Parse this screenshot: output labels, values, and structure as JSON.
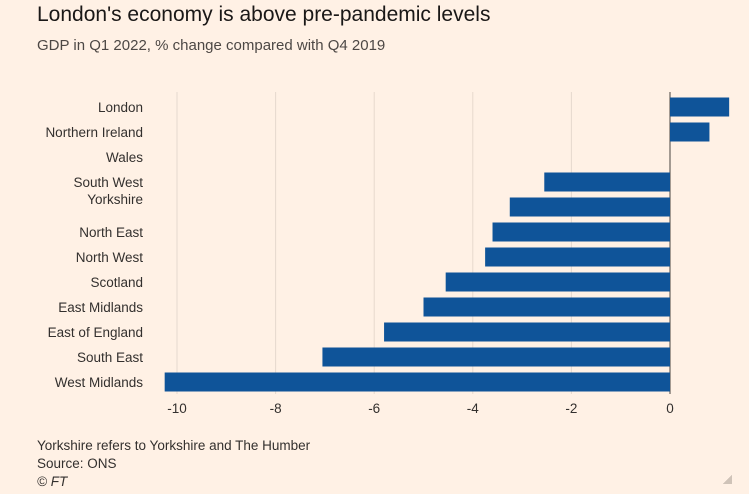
{
  "title": "London's economy is above pre-pandemic levels",
  "subtitle": "GDP in Q1 2022, % change compared with Q4 2019",
  "footer": {
    "note": "Yorkshire refers to Yorkshire and The Humber",
    "source": "Source: ONS",
    "copyright": "© FT"
  },
  "colors": {
    "background": "#fff1e5",
    "bar": "#0f5499",
    "grid": "#e6d9ce",
    "zero_line": "#66605c"
  },
  "chart_data": {
    "type": "bar",
    "orientation": "horizontal",
    "categories": [
      "London",
      "Northern Ireland",
      "Wales",
      "South West",
      "Yorkshire",
      "North East",
      "North West",
      "Scotland",
      "East Midlands",
      "East of England",
      "South East",
      "West Midlands"
    ],
    "values": [
      1.2,
      0.8,
      null,
      -2.55,
      -3.25,
      -3.6,
      -3.75,
      -4.55,
      -5.0,
      -5.8,
      -7.05,
      -10.25
    ],
    "xlim": [
      -10.4,
      1.3
    ],
    "xticks": [
      -10,
      -8,
      -6,
      -4,
      -2,
      0
    ],
    "xtick_labels": [
      "-10",
      "-8",
      "-6",
      "-4",
      "-2",
      "0"
    ],
    "grid": true
  }
}
